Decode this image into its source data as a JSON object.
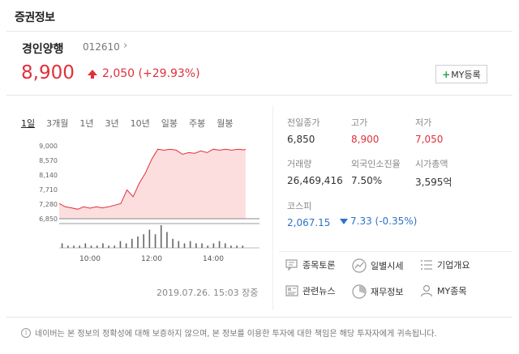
{
  "header": {
    "title": "증권정보"
  },
  "stock": {
    "name": "경인양행",
    "code": "012610",
    "chevron": "›",
    "price": "8,900",
    "change": "2,050 (+29.93%)",
    "my_button_plus": "+",
    "my_button_label": "MY등록"
  },
  "tabs": [
    {
      "label": "1일",
      "active": true
    },
    {
      "label": "3개월"
    },
    {
      "label": "1년"
    },
    {
      "label": "3년"
    },
    {
      "label": "10년"
    },
    {
      "label": "일봉"
    },
    {
      "label": "주봉"
    },
    {
      "label": "월봉"
    }
  ],
  "chart_data": {
    "type": "area",
    "y_tick_labels": [
      "9,000",
      "8,570",
      "8,140",
      "7,710",
      "7,280",
      "6,850"
    ],
    "x_tick_labels": [
      "10:00",
      "12:00",
      "14:00"
    ],
    "ylim": [
      6850,
      9000
    ],
    "x_range_hours": [
      9,
      15.5
    ],
    "series": [
      {
        "x": [
          9.0,
          9.2,
          9.4,
          9.6,
          9.8,
          10.0,
          10.2,
          10.4,
          10.6,
          10.8,
          11.0,
          11.2,
          11.4,
          11.6,
          11.8,
          12.0,
          12.2,
          12.4,
          12.6,
          12.8,
          13.0,
          13.2,
          13.4,
          13.6,
          13.8,
          14.0,
          14.2,
          14.4,
          14.6,
          14.8,
          15.0,
          15.05
        ],
        "values": [
          7300,
          7200,
          7170,
          7130,
          7200,
          7160,
          7200,
          7170,
          7200,
          7250,
          7300,
          7700,
          7500,
          7900,
          8200,
          8600,
          8900,
          8870,
          8900,
          8870,
          8750,
          8800,
          8780,
          8850,
          8800,
          8900,
          8870,
          8900,
          8870,
          8900,
          8880,
          8900
        ]
      }
    ],
    "volume": [
      2,
      1,
      1,
      1,
      2,
      1,
      1,
      2,
      1,
      1,
      3,
      2,
      4,
      5,
      6,
      8,
      6,
      10,
      7,
      4,
      3,
      2,
      3,
      2,
      2,
      1,
      2,
      3,
      2,
      1,
      1,
      1
    ],
    "fill_color": "#fcdede",
    "line_color": "#e0303a"
  },
  "timestamp": "2019.07.26. 15:03 장중",
  "stats": {
    "prev_close_label": "전일종가",
    "prev_close": "6,850",
    "high_label": "고가",
    "high": "8,900",
    "low_label": "저가",
    "low": "7,050",
    "volume_label": "거래량",
    "volume": "26,469,416",
    "foreign_label": "외국인소진율",
    "foreign": "7.50%",
    "mcap_label": "시가총액",
    "mcap": "3,595억",
    "index_label": "코스피",
    "index_value": "2,067.15",
    "index_change": "7.33 (-0.35%)"
  },
  "links": [
    {
      "label": "종목토론",
      "icon": "discussion-icon"
    },
    {
      "label": "일별시세",
      "icon": "daily-price-icon"
    },
    {
      "label": "기업개요",
      "icon": "company-icon"
    },
    {
      "label": "관련뉴스",
      "icon": "news-icon"
    },
    {
      "label": "재무정보",
      "icon": "finance-icon"
    },
    {
      "label": "MY종목",
      "icon": "my-stock-icon"
    }
  ],
  "footer": {
    "info_icon": "i",
    "text": "네이버는 본 정보의 정확성에 대해 보증하지 않으며, 본 정보를 이용한 투자에 대한 책임은 해당 투자자에게 귀속됩니다."
  },
  "colors": {
    "up": "#e0303a",
    "down": "#2d73c8"
  }
}
